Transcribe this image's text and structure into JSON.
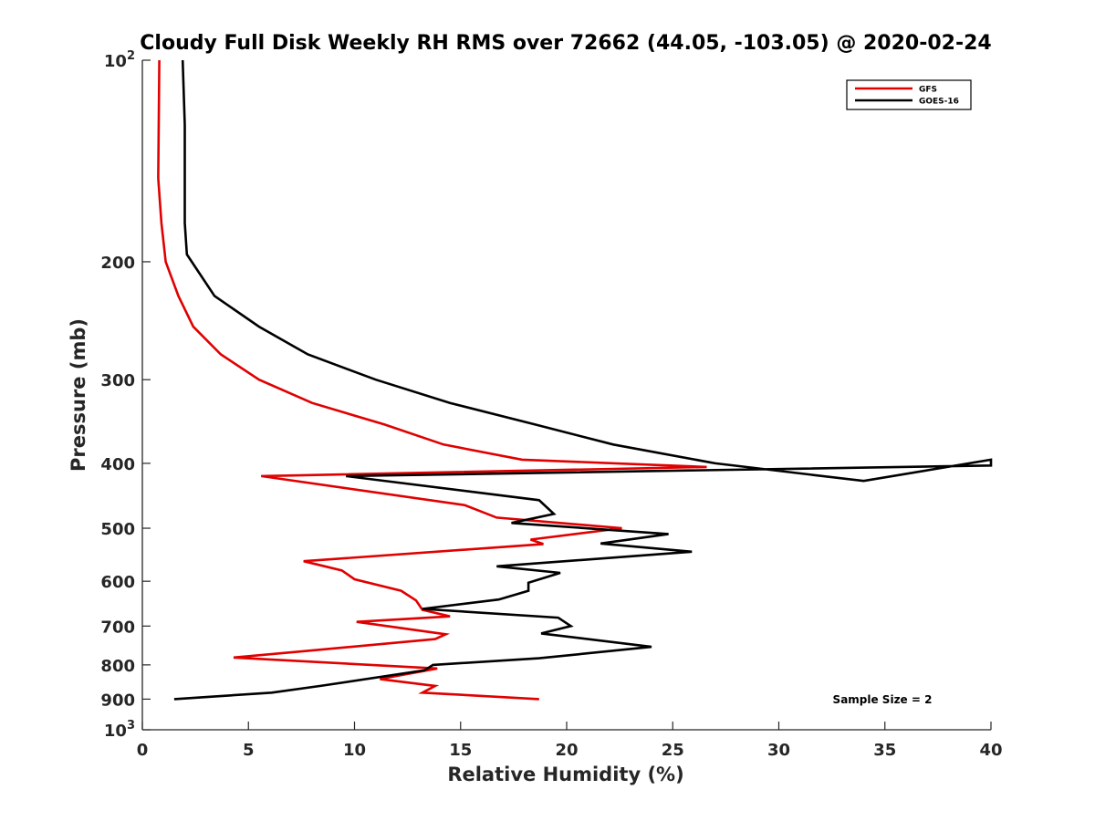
{
  "chart_data": {
    "type": "line",
    "title": "Cloudy Full Disk Weekly RH RMS over 72662 (44.05, -103.05) @ 2020-02-24",
    "xlabel": "Relative Humidity (%)",
    "ylabel": "Pressure (mb)",
    "xlim": [
      0,
      40
    ],
    "ylim": [
      100,
      1000
    ],
    "y_scale": "log",
    "y_reversed": true,
    "grid": false,
    "legend_position": "top-right",
    "x_ticks": [
      "0",
      "5",
      "10",
      "15",
      "20",
      "25",
      "30",
      "35",
      "40"
    ],
    "y_ticks": [
      {
        "value": 100,
        "label": "10",
        "sup": "2"
      },
      {
        "value": 200,
        "label": "200",
        "sup": ""
      },
      {
        "value": 300,
        "label": "300",
        "sup": ""
      },
      {
        "value": 400,
        "label": "400",
        "sup": ""
      },
      {
        "value": 500,
        "label": "500",
        "sup": ""
      },
      {
        "value": 600,
        "label": "600",
        "sup": ""
      },
      {
        "value": 700,
        "label": "700",
        "sup": ""
      },
      {
        "value": 800,
        "label": "800",
        "sup": ""
      },
      {
        "value": 900,
        "label": "900",
        "sup": ""
      },
      {
        "value": 1000,
        "label": "10",
        "sup": "3"
      }
    ],
    "annotation": "Sample Size = 2",
    "series": [
      {
        "name": "GFS",
        "color": "#e00000",
        "points": [
          [
            0.8,
            100
          ],
          [
            0.75,
            150
          ],
          [
            0.9,
            175
          ],
          [
            1.1,
            200
          ],
          [
            1.7,
            225
          ],
          [
            2.4,
            250
          ],
          [
            3.7,
            275
          ],
          [
            5.5,
            300
          ],
          [
            8.0,
            325
          ],
          [
            11.4,
            350
          ],
          [
            14.2,
            375
          ],
          [
            17.9,
            395
          ],
          [
            26.6,
            405
          ],
          [
            5.6,
            418
          ],
          [
            15.2,
            462
          ],
          [
            16.7,
            482
          ],
          [
            22.6,
            500
          ],
          [
            18.3,
            520
          ],
          [
            18.9,
            528
          ],
          [
            7.6,
            560
          ],
          [
            9.4,
            578
          ],
          [
            10.0,
            596
          ],
          [
            12.2,
            620
          ],
          [
            12.9,
            641
          ],
          [
            13.2,
            662
          ],
          [
            14.5,
            677
          ],
          [
            10.1,
            690
          ],
          [
            14.3,
            720
          ],
          [
            13.8,
            732
          ],
          [
            7.8,
            762
          ],
          [
            4.3,
            780
          ],
          [
            13.9,
            810
          ],
          [
            11.2,
            840
          ],
          [
            13.8,
            860
          ],
          [
            13.2,
            880
          ],
          [
            18.7,
            900
          ]
        ]
      },
      {
        "name": "GOES-16",
        "color": "#000000",
        "points": [
          [
            1.9,
            100
          ],
          [
            2.0,
            125
          ],
          [
            2.0,
            150
          ],
          [
            2.0,
            175
          ],
          [
            2.1,
            195
          ],
          [
            3.4,
            225
          ],
          [
            5.5,
            250
          ],
          [
            7.8,
            275
          ],
          [
            11.0,
            300
          ],
          [
            14.5,
            325
          ],
          [
            18.5,
            350
          ],
          [
            22.2,
            375
          ],
          [
            27.0,
            400
          ],
          [
            34.0,
            425
          ],
          [
            40.0,
            395
          ],
          [
            40.0,
            403
          ],
          [
            9.6,
            418
          ],
          [
            18.7,
            454
          ],
          [
            19.4,
            476
          ],
          [
            17.4,
            491
          ],
          [
            24.8,
            510
          ],
          [
            21.6,
            527
          ],
          [
            25.9,
            542
          ],
          [
            16.7,
            570
          ],
          [
            19.7,
            583
          ],
          [
            18.2,
            603
          ],
          [
            18.2,
            620
          ],
          [
            16.8,
            639
          ],
          [
            13.2,
            660
          ],
          [
            19.6,
            680
          ],
          [
            20.2,
            700
          ],
          [
            18.8,
            718
          ],
          [
            24.0,
            752
          ],
          [
            18.7,
            782
          ],
          [
            13.7,
            800
          ],
          [
            13.3,
            815
          ],
          [
            8.4,
            860
          ],
          [
            6.1,
            880
          ],
          [
            1.5,
            900
          ]
        ]
      }
    ]
  }
}
